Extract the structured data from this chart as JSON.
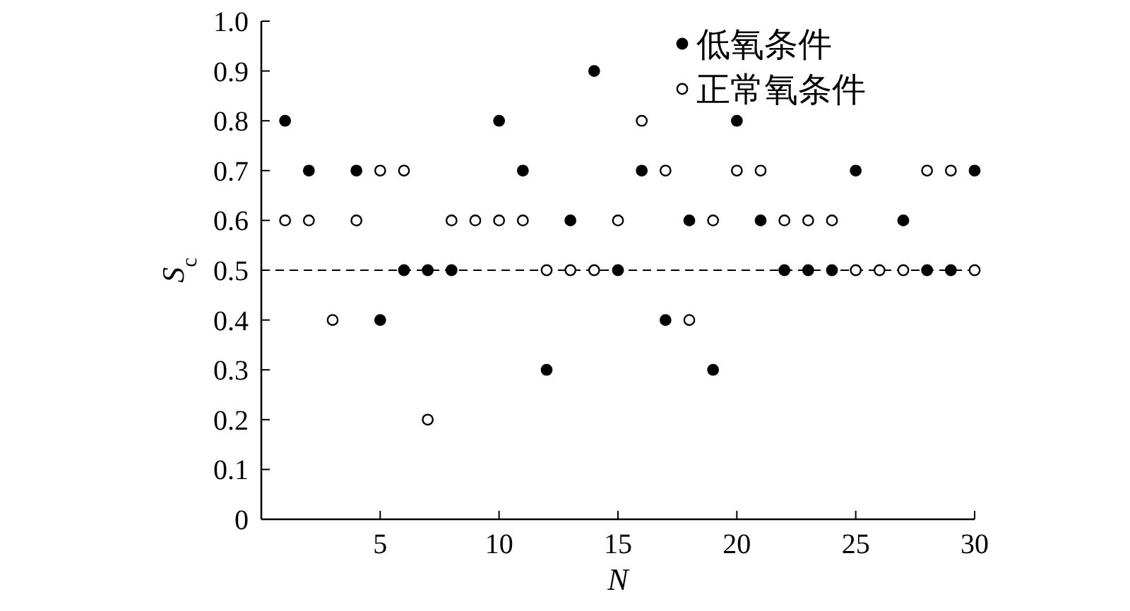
{
  "chart_data": {
    "type": "scatter",
    "xlabel": "N",
    "ylabel": "S$_{c}$",
    "x": [
      1,
      2,
      3,
      4,
      5,
      6,
      7,
      8,
      9,
      10,
      11,
      12,
      13,
      14,
      15,
      16,
      17,
      18,
      19,
      20,
      21,
      22,
      23,
      24,
      25,
      26,
      27,
      28,
      29,
      30
    ],
    "series": [
      {
        "name": "低氧条件",
        "color": "#000000",
        "values": [
          0.8,
          0.7,
          null,
          0.7,
          0.4,
          0.5,
          0.5,
          0.5,
          null,
          0.8,
          0.7,
          0.3,
          0.6,
          0.9,
          0.5,
          0.7,
          0.4,
          0.6,
          0.3,
          0.8,
          0.6,
          0.5,
          0.5,
          0.5,
          0.7,
          null,
          0.6,
          0.5,
          0.5,
          0.7
        ]
      },
      {
        "name": "正常氧条件",
        "color": "#000000",
        "values": [
          0.6,
          0.6,
          0.4,
          0.6,
          0.7,
          0.7,
          0.2,
          0.6,
          0.6,
          0.6,
          0.6,
          0.5,
          0.5,
          0.5,
          0.6,
          0.8,
          0.7,
          0.4,
          0.6,
          0.7,
          0.7,
          0.6,
          0.6,
          0.6,
          0.5,
          0.5,
          0.5,
          0.7,
          0.7,
          0.5
        ]
      }
    ],
    "xlim": [
      0,
      30
    ],
    "xticks": [
      5,
      10,
      15,
      20,
      25,
      30
    ],
    "ylim": [
      0,
      1
    ],
    "yticks": [
      0,
      {
        "value": 0.1,
        "label": "0.1"
      },
      {
        "value": 0.2,
        "label": "0.2"
      },
      {
        "value": 0.3,
        "label": "0.3"
      },
      {
        "value": 0.4,
        "label": "0.4"
      },
      {
        "value": 0.5,
        "label": "0.5"
      },
      {
        "value": 0.6,
        "label": "0.6"
      },
      {
        "value": 0.7,
        "label": "0.7"
      },
      {
        "value": 0.8,
        "label": "0.8"
      },
      {
        "value": 0.9,
        "label": "0.9"
      },
      {
        "value": 1.0,
        "label": "1.0"
      }
    ],
    "ref_lines": [
      {
        "axis": "y",
        "value": 0.5,
        "line_style": "dashed",
        "color": "#000000"
      }
    ],
    "legend": "top right",
    "marker": "circle",
    "grid": false
  }
}
